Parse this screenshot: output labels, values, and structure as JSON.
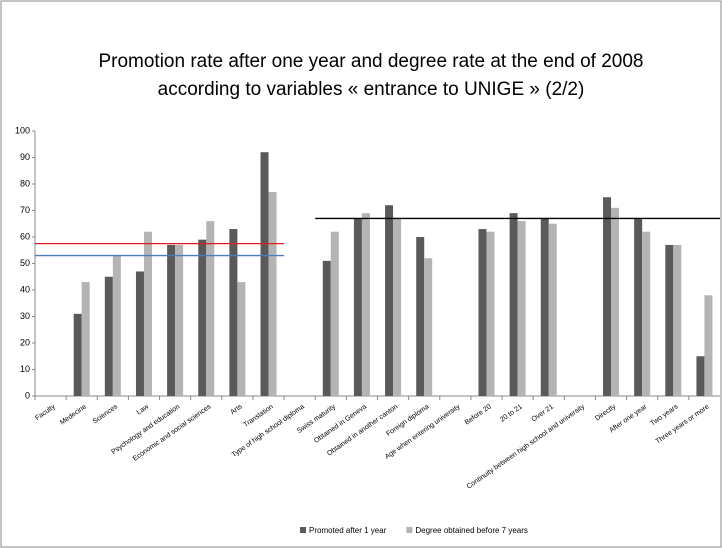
{
  "chart_data": {
    "type": "bar",
    "title": [
      "Promotion rate after one year and degree rate at the end of 2008",
      "according to variables « entrance to UNIGE » (2/2)"
    ],
    "categories": [
      "Faculty",
      "Medecine",
      "Sciences",
      "Law",
      "Psychology and education",
      "Economic and social sciences",
      "Arts",
      "Translation",
      "Type of high school diploma",
      "Swiss maturity",
      "Obtained in Geneva",
      "Obtained in another canton",
      "Foreign diploma",
      "Age when entering university",
      "Before 20",
      "20 to 21",
      "Over 21",
      "Continuity between high school and university",
      "Directly",
      "After one year",
      "Two years",
      "Three years or more"
    ],
    "series": [
      {
        "name": "Promoted after 1 year",
        "color": "#5a5a5a",
        "values": [
          null,
          31,
          45,
          47,
          57,
          59,
          63,
          92,
          null,
          51,
          67,
          72,
          60,
          null,
          63,
          69,
          67,
          null,
          75,
          67,
          57,
          15
        ]
      },
      {
        "name": "Degree obtained before 7 years",
        "color": "#b4b4b4",
        "values": [
          null,
          43,
          53,
          62,
          57,
          66,
          43,
          77,
          null,
          62,
          69,
          67,
          52,
          null,
          62,
          66,
          65,
          null,
          71,
          62,
          57,
          38
        ]
      }
    ],
    "reference_lines": [
      {
        "value": 57.5,
        "color": "#e31a1c",
        "span": [
          0,
          7
        ]
      },
      {
        "value": 53,
        "color": "#4a7ebb",
        "span": [
          0,
          7
        ]
      },
      {
        "value": 67,
        "color": "#000000",
        "span": [
          9,
          21
        ]
      }
    ],
    "ylim": [
      0,
      100
    ],
    "yticks": [
      0,
      10,
      20,
      30,
      40,
      50,
      60,
      70,
      80,
      90,
      100
    ],
    "grid": false,
    "legend": "bottom"
  }
}
